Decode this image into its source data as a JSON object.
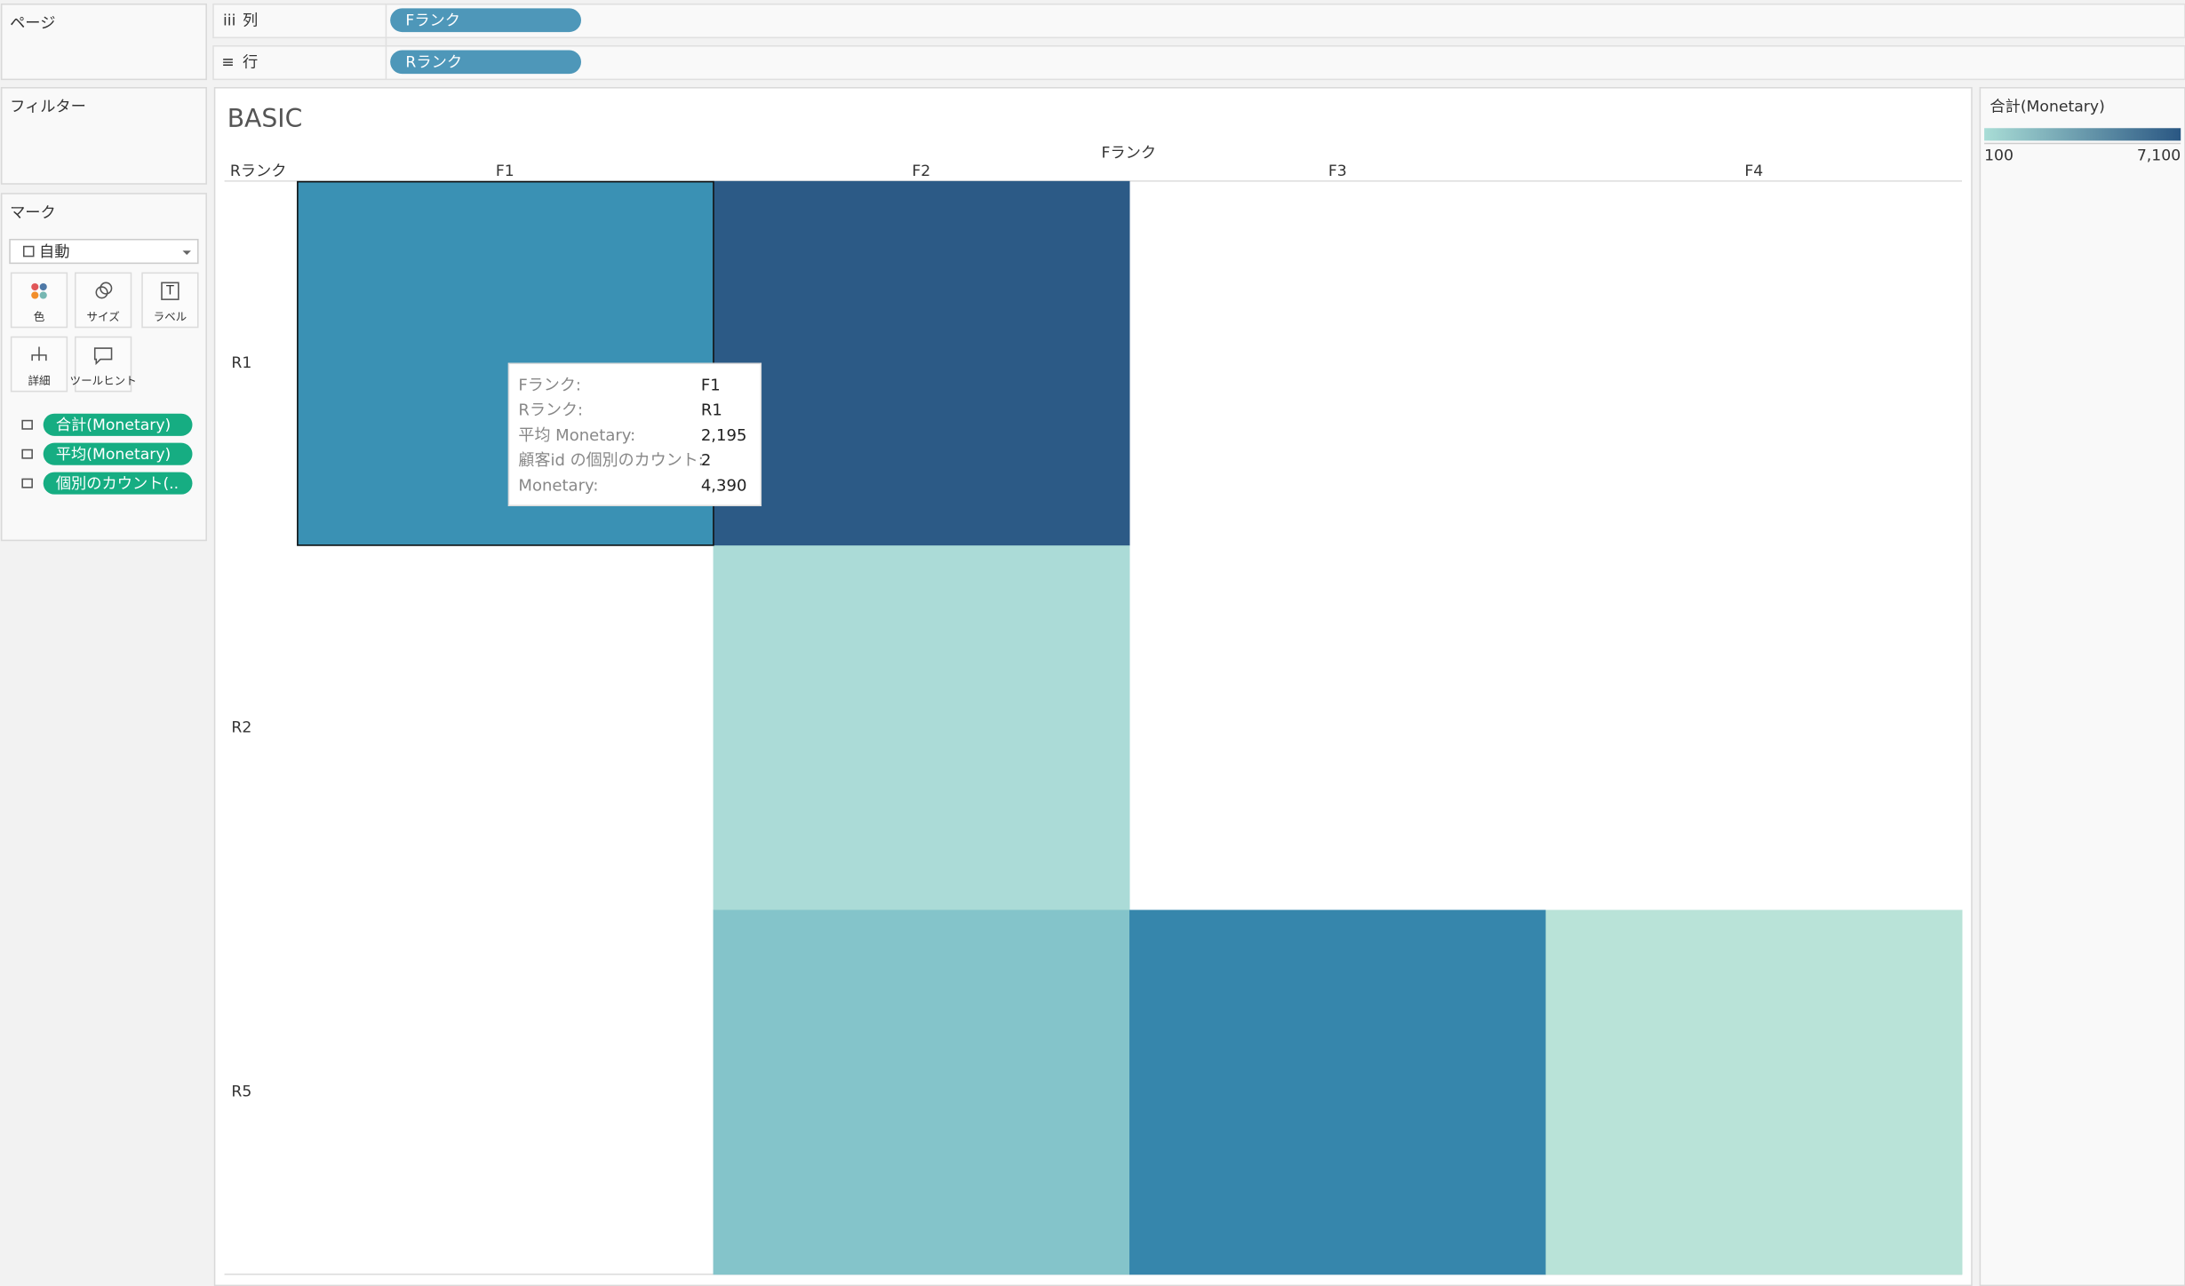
{
  "shelves": {
    "pages_label": "ページ",
    "filters_label": "フィルター",
    "columns": {
      "label": "列",
      "pill": "Fランク"
    },
    "rows": {
      "label": "行",
      "pill": "Rランク"
    },
    "pill_color": "#4e97b9"
  },
  "marks": {
    "title": "マーク",
    "mark_type": "自動",
    "buttons": [
      "色",
      "サイズ",
      "ラベル",
      "詳細",
      "ツールヒント"
    ],
    "fields": [
      "合計(Monetary)",
      "平均(Monetary)",
      "個別のカウント(.."
    ],
    "field_color": "#16ad82"
  },
  "view": {
    "title": "BASIC",
    "column_header": "Fランク",
    "row_header": "Rランク",
    "columns": [
      "F1",
      "F2",
      "F3",
      "F4"
    ],
    "rows": [
      {
        "label": "R1",
        "cells": [
          "#3a91b4",
          "#2c5a86",
          null,
          null
        ]
      },
      {
        "label": "R2",
        "cells": [
          null,
          "#abdbd7",
          null,
          null
        ]
      },
      {
        "label": "R5",
        "cells": [
          null,
          "#84c4ca",
          "#3686ac",
          "#b9e3d8"
        ]
      }
    ]
  },
  "legend": {
    "title": "合計(Monetary)",
    "min": 100,
    "max": {
      "value": 7100,
      "label": "7,100"
    },
    "colors": [
      "#a9ddd6",
      "#2a5783"
    ]
  },
  "tooltip": {
    "rows": [
      [
        "Fランク:",
        "F1"
      ],
      [
        "Rランク:",
        "R1"
      ],
      [
        "平均 Monetary:",
        "2,195"
      ],
      [
        "顧客id の個別のカウント:",
        "2"
      ],
      [
        "Monetary:",
        "4,390"
      ]
    ]
  }
}
